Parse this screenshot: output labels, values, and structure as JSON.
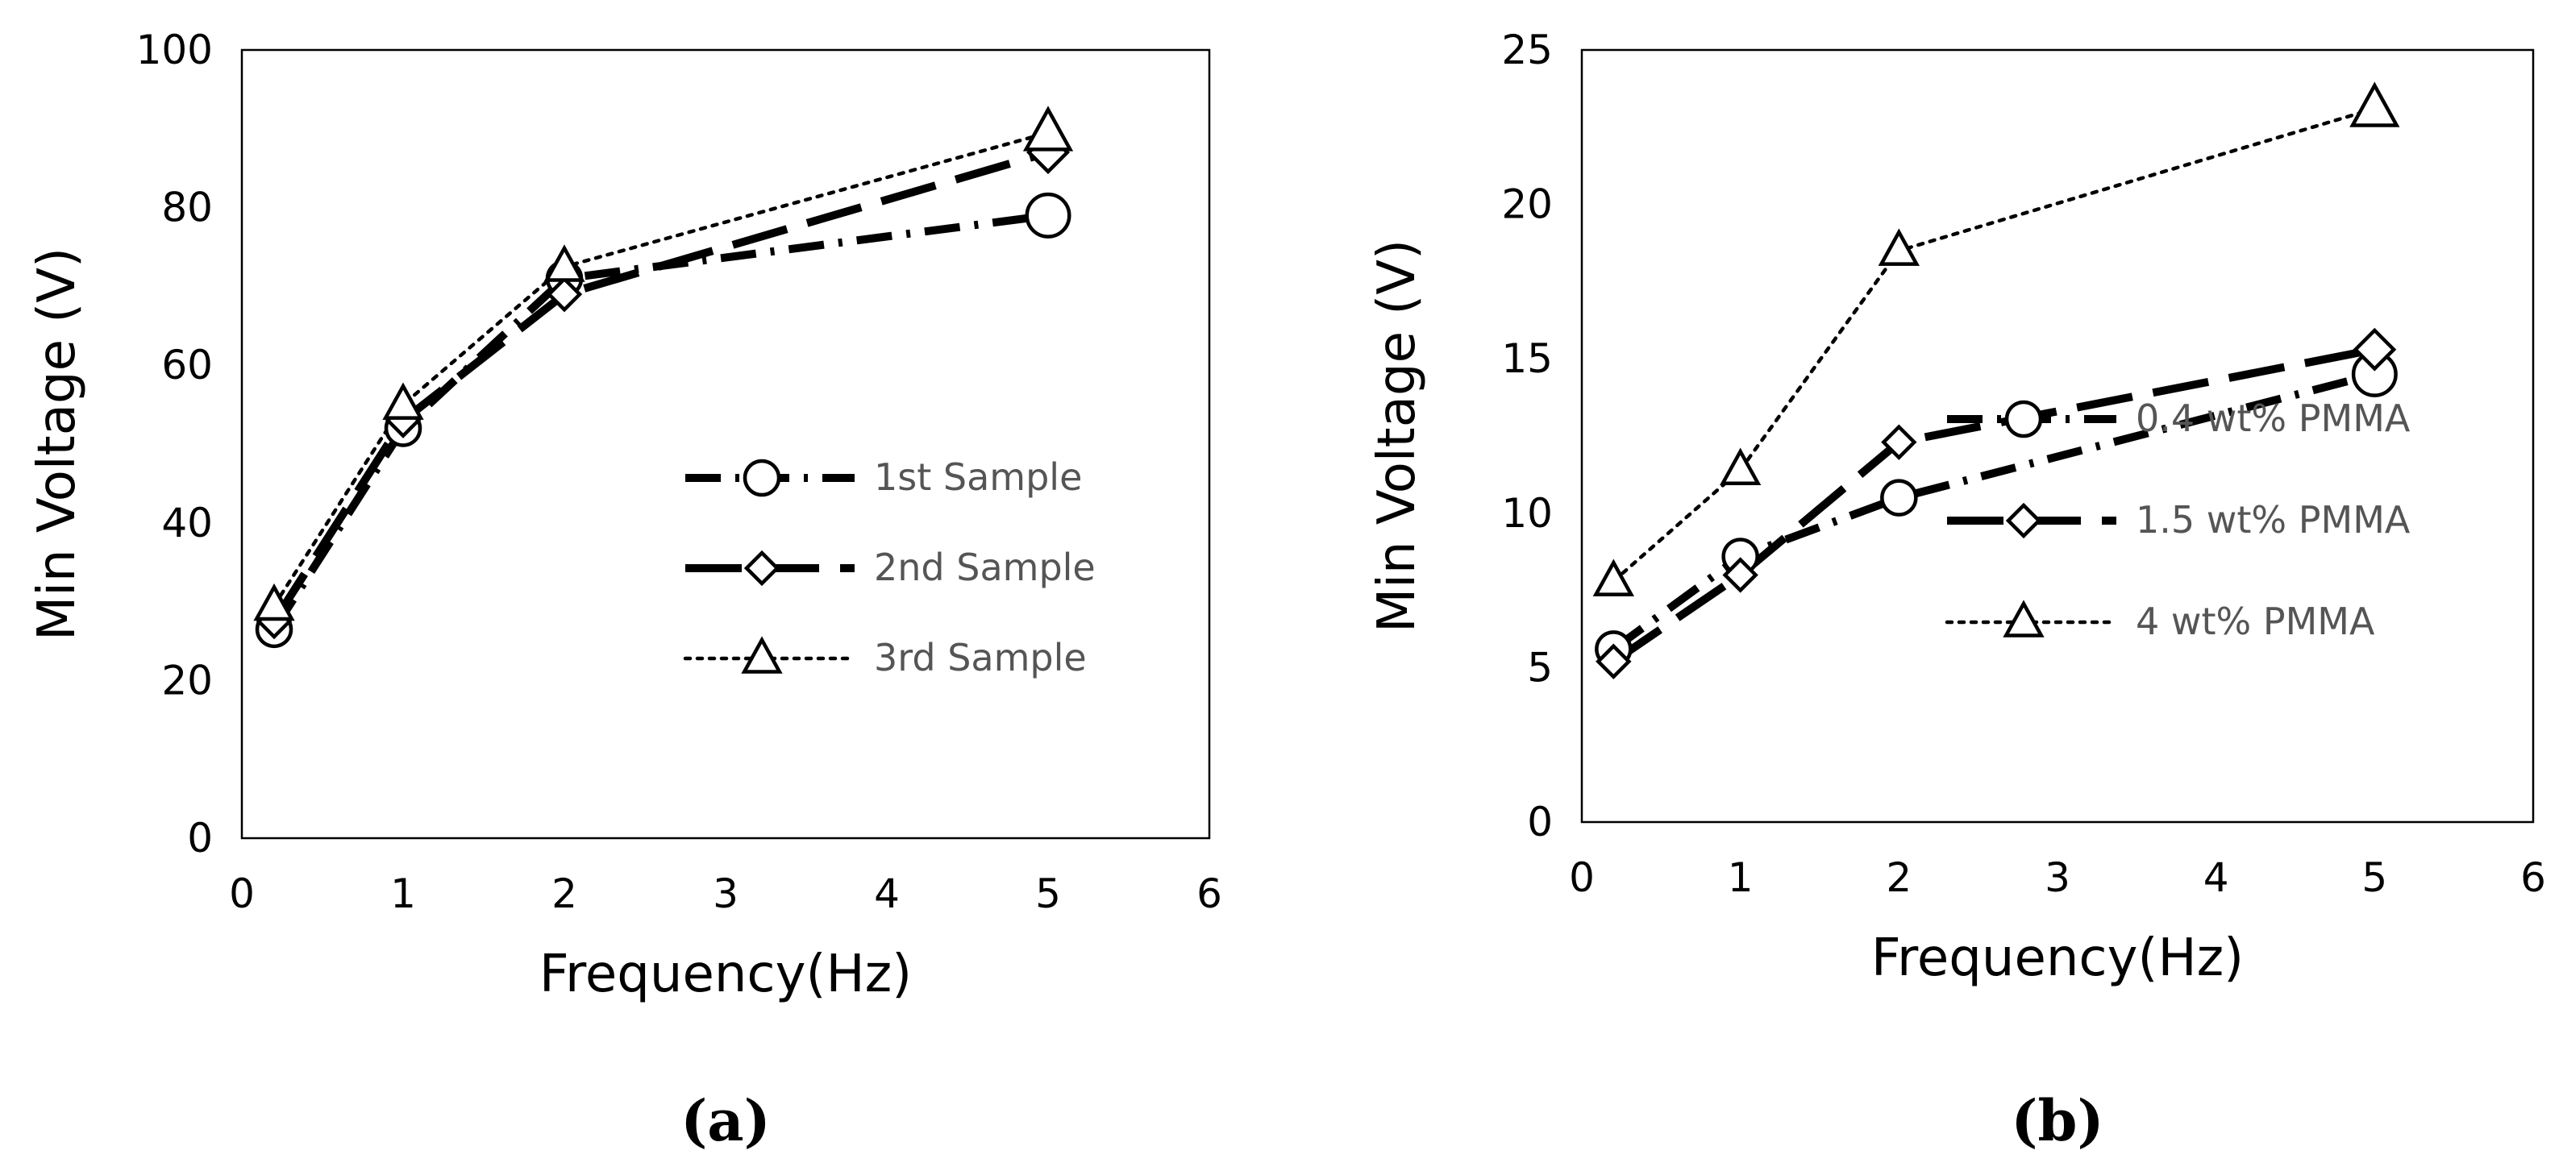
{
  "chart_data": [
    {
      "type": "line",
      "panel_label": "(a)",
      "xlabel": "Frequency(Hz)",
      "ylabel": "Min Voltage (V)",
      "xlim": [
        0,
        6
      ],
      "ylim": [
        0,
        100
      ],
      "x_ticks": [
        0,
        1,
        2,
        3,
        4,
        5,
        6
      ],
      "y_ticks": [
        0,
        20,
        40,
        60,
        80,
        100
      ],
      "grid": false,
      "legend_position": "center-right",
      "x": [
        0.2,
        1,
        2,
        5
      ],
      "series": [
        {
          "name": "1st Sample",
          "values": [
            26.5,
            52,
            71,
            79
          ],
          "marker": "circle",
          "line_style": "dash-dot"
        },
        {
          "name": "2nd Sample",
          "values": [
            27.5,
            53,
            69,
            87
          ],
          "marker": "diamond",
          "line_style": "long-dash"
        },
        {
          "name": "3rd Sample",
          "values": [
            29.5,
            55,
            72.5,
            89.5
          ],
          "marker": "triangle",
          "line_style": "dotted"
        }
      ]
    },
    {
      "type": "line",
      "panel_label": "(b)",
      "xlabel": "Frequency(Hz)",
      "ylabel": "Min Voltage (V)",
      "xlim": [
        0,
        6
      ],
      "ylim": [
        0,
        25
      ],
      "x_ticks": [
        0,
        1,
        2,
        3,
        4,
        5,
        6
      ],
      "y_ticks": [
        0,
        5,
        10,
        15,
        20,
        25
      ],
      "grid": false,
      "legend_position": "center-right",
      "x": [
        0.2,
        1,
        2,
        5
      ],
      "series": [
        {
          "name": "0.4 wt% PMMA",
          "values": [
            5.6,
            8.6,
            10.5,
            14.5
          ],
          "marker": "circle",
          "line_style": "dash-dot"
        },
        {
          "name": "1.5 wt% PMMA",
          "values": [
            5.2,
            8.0,
            12.3,
            15.3
          ],
          "marker": "diamond",
          "line_style": "long-dash"
        },
        {
          "name": "4 wt% PMMA",
          "values": [
            7.8,
            11.4,
            18.5,
            23.1
          ],
          "marker": "triangle",
          "line_style": "dotted"
        }
      ]
    }
  ]
}
